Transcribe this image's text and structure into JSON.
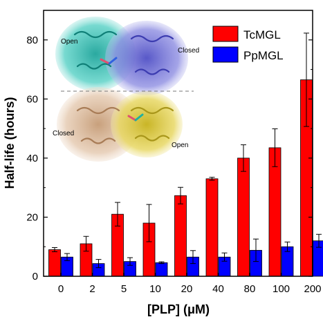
{
  "chart_data": {
    "type": "bar",
    "xlabel": "[PLP] (μM)",
    "ylabel": "Half-life (hours)",
    "categories": [
      "0",
      "2",
      "5",
      "10",
      "20",
      "40",
      "80",
      "100",
      "200"
    ],
    "ylim": [
      0,
      90
    ],
    "yticks": [
      0,
      20,
      40,
      60,
      80
    ],
    "grid": false,
    "legend_position": "top-right",
    "series": [
      {
        "name": "TcMGL",
        "color": "#ff0000",
        "values": [
          9.0,
          11.0,
          21.0,
          18.0,
          27.3,
          33.0,
          40.0,
          43.5,
          66.5
        ],
        "errors": [
          0.7,
          2.5,
          4.0,
          6.3,
          2.8,
          0.5,
          4.5,
          6.4,
          15.8
        ]
      },
      {
        "name": "PpMGL",
        "color": "#0000ff",
        "values": [
          6.5,
          4.3,
          5.0,
          4.6,
          6.5,
          6.5,
          8.8,
          10.0,
          12.0
        ],
        "errors": [
          1.2,
          1.4,
          1.3,
          0.3,
          2.2,
          1.4,
          3.8,
          1.6,
          2.2
        ]
      }
    ],
    "annotations": [
      "Open",
      "Closed",
      "Closed",
      "Open"
    ]
  }
}
